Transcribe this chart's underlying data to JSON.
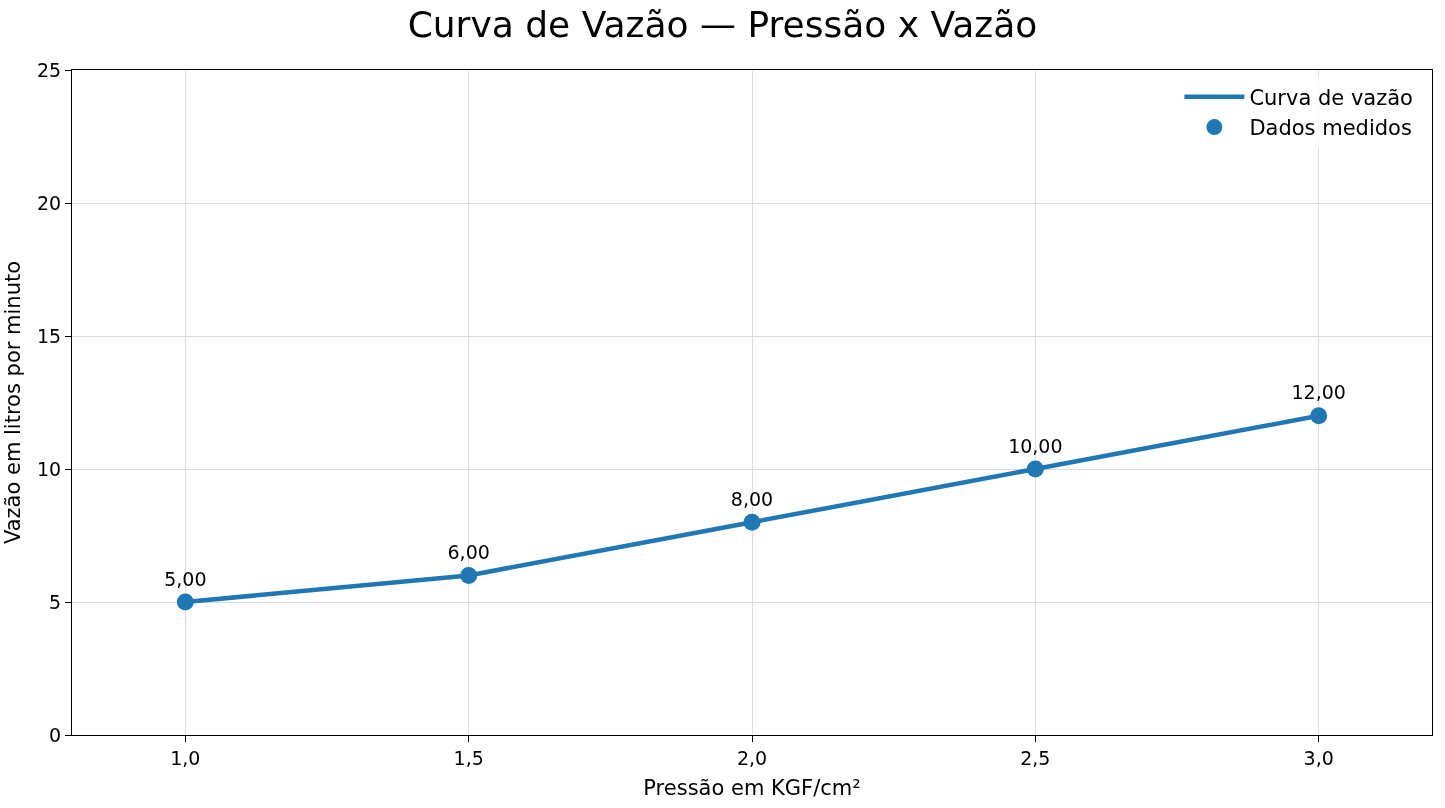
{
  "chart_data": {
    "type": "line",
    "title": "Curva de Vazão — Pressão x Vazão",
    "xlabel": "Pressão em KGF/cm²",
    "ylabel": "Vazão em litros por minuto",
    "x": [
      1.0,
      1.5,
      2.0,
      2.5,
      3.0
    ],
    "series": [
      {
        "name": "Curva de vazão",
        "color": "#1f77b4",
        "values": [
          5,
          6,
          8,
          10,
          12
        ],
        "marker": "none",
        "line_style": "solid"
      },
      {
        "name": "Dados medidos",
        "type": "scatter",
        "color": "#1f77b4",
        "values": [
          5,
          6,
          8,
          10,
          12
        ],
        "marker": "circle",
        "value_labels": [
          "5,00",
          "6,00",
          "8,00",
          "10,00",
          "12,00"
        ]
      }
    ],
    "xlim": [
      0.8,
      3.2
    ],
    "ylim": [
      0,
      25
    ],
    "xticks": [
      {
        "value": 1.0,
        "label": "1,0"
      },
      {
        "value": 1.5,
        "label": "1,5"
      },
      {
        "value": 2.0,
        "label": "2,0"
      },
      {
        "value": 2.5,
        "label": "2,5"
      },
      {
        "value": 3.0,
        "label": "3,0"
      }
    ],
    "yticks": [
      0,
      5,
      10,
      15,
      20,
      25
    ],
    "grid": true,
    "legend": "top right"
  }
}
